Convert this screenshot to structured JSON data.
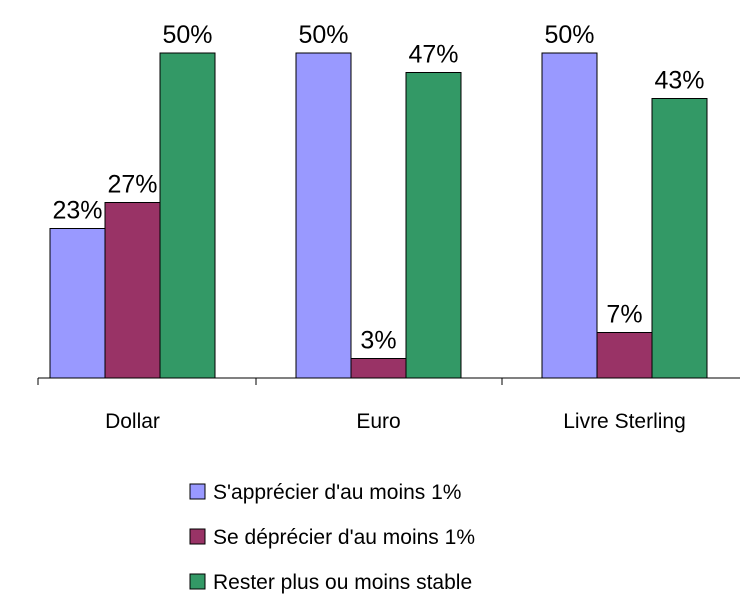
{
  "chart_data": {
    "type": "bar",
    "categories": [
      "Dollar",
      "Euro",
      "Livre Sterling"
    ],
    "series": [
      {
        "name": "S'apprécier d'au moins 1%",
        "color": "#9999ff",
        "values": [
          23,
          50,
          50
        ],
        "value_labels": [
          "23%",
          "50%",
          "50%"
        ]
      },
      {
        "name": "Se déprécier d'au moins 1%",
        "color": "#993366",
        "values": [
          27,
          3,
          7
        ],
        "value_labels": [
          "27%",
          "3%",
          "7%"
        ]
      },
      {
        "name": "Rester plus ou moins stable",
        "color": "#339966",
        "values": [
          50,
          47,
          43
        ],
        "value_labels": [
          "50%",
          "47%",
          "43%"
        ]
      }
    ]
  }
}
